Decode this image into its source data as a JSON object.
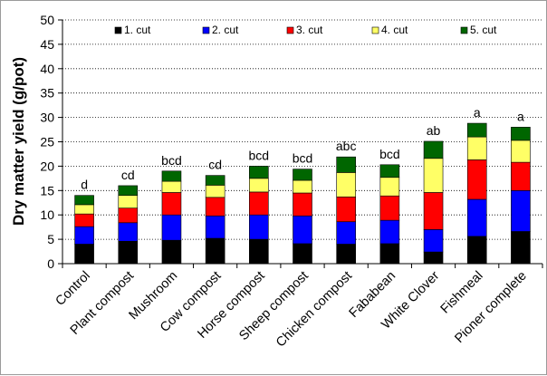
{
  "chart_data": {
    "type": "bar",
    "stacked": true,
    "ylabel": "Dry matter yield (g/pot)",
    "xlabel": "",
    "ylim": [
      0,
      50
    ],
    "y_ticks": [
      0,
      5,
      10,
      15,
      20,
      25,
      30,
      35,
      40,
      45,
      50
    ],
    "grid": true,
    "legend_position": "top",
    "categories": [
      "Control",
      "Plant compost",
      "Mushroom",
      "Cow compost",
      "Horse compost",
      "Sheep compost",
      "Chicken compost",
      "Fababean",
      "White Clover",
      "Fishmeal",
      "Pioner complete"
    ],
    "significance_letters": [
      "d",
      "cd",
      "bcd",
      "cd",
      "bcd",
      "bcd",
      "abc",
      "bcd",
      "ab",
      "a",
      "a"
    ],
    "series": [
      {
        "name": "1. cut",
        "color": "#000000",
        "values": [
          4.0,
          4.6,
          4.8,
          5.2,
          5.0,
          4.1,
          4.0,
          4.1,
          2.4,
          5.6,
          6.6
        ]
      },
      {
        "name": "2. cut",
        "color": "#0000ff",
        "values": [
          3.6,
          3.8,
          5.2,
          4.6,
          5.0,
          5.7,
          4.6,
          4.8,
          4.6,
          7.6,
          8.4
        ]
      },
      {
        "name": "3. cut",
        "color": "#ff0000",
        "values": [
          2.6,
          3.0,
          4.6,
          3.8,
          4.7,
          4.7,
          5.1,
          5.0,
          7.6,
          8.1,
          5.8
        ]
      },
      {
        "name": "4. cut",
        "color": "#ffff66",
        "values": [
          1.9,
          2.6,
          2.3,
          2.5,
          2.8,
          2.6,
          5.0,
          3.8,
          7.0,
          4.7,
          4.5
        ]
      },
      {
        "name": "5. cut",
        "color": "#006600",
        "values": [
          1.9,
          2.0,
          2.1,
          2.0,
          2.5,
          2.3,
          3.2,
          2.6,
          3.5,
          2.8,
          2.7
        ]
      }
    ]
  }
}
